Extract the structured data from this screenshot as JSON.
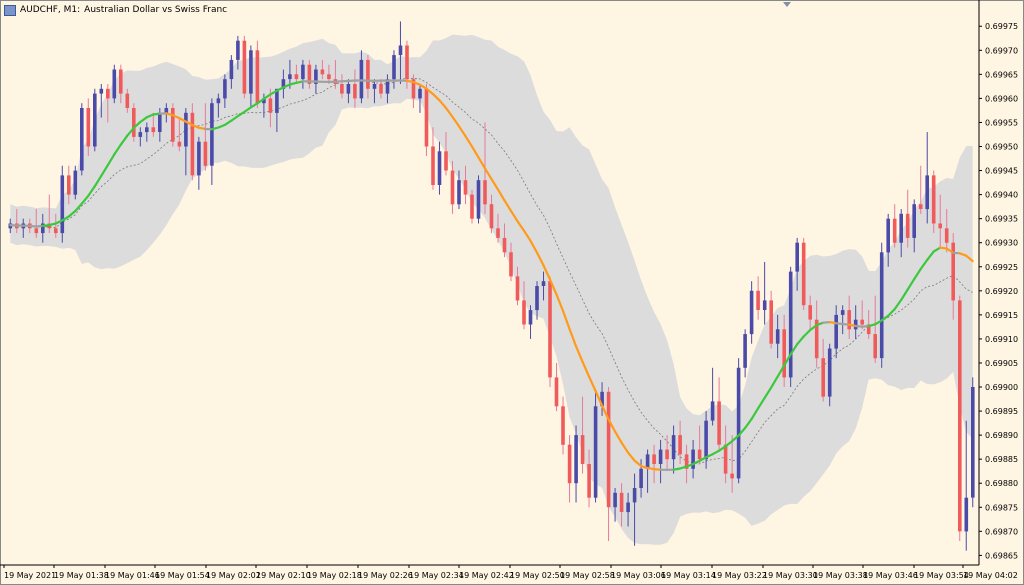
{
  "window": {
    "symbol_title": "AUDCHF, M1:",
    "description": "Australian Dollar vs Swiss Franc",
    "symbol_icon": "chart-window-icon"
  },
  "colors": {
    "background": "#fff5e3",
    "bull": "#4a4aa8",
    "bear": "#f05a5a",
    "band": "#dcdcdc",
    "ma_up": "#3cc83c",
    "ma_down": "#ff9a1a",
    "ma_flat": "#a0a0a0",
    "mid": "#7a7a7a"
  },
  "chart_data": {
    "type": "candlestick",
    "y_ticks": [
      "0.69975",
      "0.69970",
      "0.69965",
      "0.69960",
      "0.69955",
      "0.69950",
      "0.69945",
      "0.69940",
      "0.69935",
      "0.69930",
      "0.69925",
      "0.69920",
      "0.69915",
      "0.69910",
      "0.69905",
      "0.69900",
      "0.69895",
      "0.69890",
      "0.69885",
      "0.69880",
      "0.69875",
      "0.69870",
      "0.69865"
    ],
    "y_tick_values": [
      0.69975,
      0.6997,
      0.69965,
      0.6996,
      0.69955,
      0.6995,
      0.69945,
      0.6994,
      0.69935,
      0.6993,
      0.69925,
      0.6992,
      0.69915,
      0.6991,
      0.69905,
      0.699,
      0.69895,
      0.6989,
      0.69885,
      0.6988,
      0.69875,
      0.6987,
      0.69865
    ],
    "x_ticks": [
      "19 May 2021",
      "19 May 01:38",
      "19 May 01:46",
      "19 May 01:54",
      "19 May 02:02",
      "19 May 02:10",
      "19 May 02:18",
      "19 May 02:26",
      "19 May 02:34",
      "19 May 02:42",
      "19 May 02:50",
      "19 May 02:58",
      "19 May 03:06",
      "19 May 03:14",
      "19 May 03:22",
      "19 May 03:30",
      "19 May 03:38",
      "19 May 03:46",
      "19 May 03:54",
      "19 May 04:02"
    ],
    "ylim": [
      0.69863,
      0.69979
    ],
    "candles": [
      [
        0.69933,
        0.69935,
        0.69932,
        0.69934
      ],
      [
        0.69934,
        0.69937,
        0.69932,
        0.69933
      ],
      [
        0.69933,
        0.69935,
        0.69931,
        0.69934
      ],
      [
        0.69934,
        0.69935,
        0.69932,
        0.69933
      ],
      [
        0.69933,
        0.69937,
        0.69931,
        0.69932
      ],
      [
        0.69932,
        0.69936,
        0.6993,
        0.69934
      ],
      [
        0.69934,
        0.6994,
        0.69932,
        0.69933
      ],
      [
        0.69933,
        0.69936,
        0.69931,
        0.69932
      ],
      [
        0.69932,
        0.69946,
        0.6993,
        0.69944
      ],
      [
        0.69944,
        0.69946,
        0.69938,
        0.6994
      ],
      [
        0.6994,
        0.69946,
        0.69939,
        0.69945
      ],
      [
        0.69945,
        0.69959,
        0.69944,
        0.69958
      ],
      [
        0.69958,
        0.6996,
        0.69948,
        0.6995
      ],
      [
        0.6995,
        0.69962,
        0.69949,
        0.69961
      ],
      [
        0.69961,
        0.69963,
        0.69956,
        0.69962
      ],
      [
        0.69962,
        0.69963,
        0.69955,
        0.6996
      ],
      [
        0.6996,
        0.69967,
        0.69959,
        0.69966
      ],
      [
        0.69966,
        0.69967,
        0.69959,
        0.69961
      ],
      [
        0.69961,
        0.69962,
        0.69957,
        0.69958
      ],
      [
        0.69958,
        0.69959,
        0.69951,
        0.69952
      ],
      [
        0.69952,
        0.69954,
        0.6995,
        0.69953
      ],
      [
        0.69953,
        0.69955,
        0.69951,
        0.69954
      ],
      [
        0.69954,
        0.69957,
        0.69952,
        0.69953
      ],
      [
        0.69953,
        0.69958,
        0.69951,
        0.69957
      ],
      [
        0.69957,
        0.69959,
        0.69955,
        0.69958
      ],
      [
        0.69958,
        0.69959,
        0.6995,
        0.69951
      ],
      [
        0.69951,
        0.69956,
        0.69949,
        0.6995
      ],
      [
        0.6995,
        0.69958,
        0.69944,
        0.69957
      ],
      [
        0.69957,
        0.69959,
        0.69943,
        0.69944
      ],
      [
        0.69944,
        0.69952,
        0.69941,
        0.69951
      ],
      [
        0.69951,
        0.69959,
        0.69945,
        0.69946
      ],
      [
        0.69946,
        0.6996,
        0.69942,
        0.69959
      ],
      [
        0.69959,
        0.69961,
        0.69956,
        0.6996
      ],
      [
        0.6996,
        0.69965,
        0.69958,
        0.69964
      ],
      [
        0.69964,
        0.69969,
        0.69962,
        0.69968
      ],
      [
        0.69968,
        0.69973,
        0.69966,
        0.69972
      ],
      [
        0.69972,
        0.69973,
        0.6996,
        0.69961
      ],
      [
        0.69961,
        0.69971,
        0.69958,
        0.6997
      ],
      [
        0.6997,
        0.69972,
        0.69958,
        0.69959
      ],
      [
        0.69959,
        0.69961,
        0.69956,
        0.6996
      ],
      [
        0.6996,
        0.69962,
        0.69954,
        0.69957
      ],
      [
        0.69957,
        0.69961,
        0.69953,
        0.69962
      ],
      [
        0.69962,
        0.69966,
        0.6996,
        0.69964
      ],
      [
        0.69964,
        0.69968,
        0.69962,
        0.69965
      ],
      [
        0.69965,
        0.69967,
        0.69963,
        0.69964
      ],
      [
        0.69964,
        0.69968,
        0.69962,
        0.69967
      ],
      [
        0.69967,
        0.69968,
        0.69962,
        0.69963
      ],
      [
        0.69963,
        0.69967,
        0.69961,
        0.69966
      ],
      [
        0.69966,
        0.69968,
        0.69964,
        0.69965
      ],
      [
        0.69965,
        0.69967,
        0.69963,
        0.69964
      ],
      [
        0.69964,
        0.69968,
        0.69962,
        0.69963
      ],
      [
        0.69963,
        0.69965,
        0.6996,
        0.69961
      ],
      [
        0.69961,
        0.69964,
        0.69959,
        0.69963
      ],
      [
        0.69963,
        0.69966,
        0.69958,
        0.6996
      ],
      [
        0.6996,
        0.6997,
        0.69959,
        0.69968
      ],
      [
        0.69968,
        0.69969,
        0.6996,
        0.69962
      ],
      [
        0.69962,
        0.69964,
        0.69959,
        0.69963
      ],
      [
        0.69963,
        0.69964,
        0.6996,
        0.69961
      ],
      [
        0.69961,
        0.69965,
        0.69959,
        0.69964
      ],
      [
        0.69964,
        0.6997,
        0.69962,
        0.69969
      ],
      [
        0.69969,
        0.69976,
        0.69963,
        0.69971
      ],
      [
        0.69971,
        0.69972,
        0.69962,
        0.69964
      ],
      [
        0.69964,
        0.69965,
        0.69958,
        0.6996
      ],
      [
        0.6996,
        0.69963,
        0.69957,
        0.69962
      ],
      [
        0.69962,
        0.69963,
        0.69948,
        0.6995
      ],
      [
        0.6995,
        0.69954,
        0.69941,
        0.69942
      ],
      [
        0.69942,
        0.69951,
        0.6994,
        0.69949
      ],
      [
        0.69949,
        0.69953,
        0.69944,
        0.69945
      ],
      [
        0.69945,
        0.69947,
        0.69936,
        0.69938
      ],
      [
        0.69938,
        0.69945,
        0.69937,
        0.69943
      ],
      [
        0.69943,
        0.69946,
        0.69938,
        0.6994
      ],
      [
        0.6994,
        0.69941,
        0.69934,
        0.69935
      ],
      [
        0.69935,
        0.69944,
        0.69934,
        0.69943
      ],
      [
        0.69943,
        0.69955,
        0.69936,
        0.69938
      ],
      [
        0.69938,
        0.6994,
        0.69932,
        0.69933
      ],
      [
        0.69933,
        0.69936,
        0.6993,
        0.69931
      ],
      [
        0.69931,
        0.69934,
        0.69927,
        0.69928
      ],
      [
        0.69928,
        0.6993,
        0.69922,
        0.69923
      ],
      [
        0.69923,
        0.69925,
        0.69917,
        0.69918
      ],
      [
        0.69918,
        0.69922,
        0.69912,
        0.69913
      ],
      [
        0.69913,
        0.69917,
        0.6991,
        0.69916
      ],
      [
        0.69916,
        0.69922,
        0.69914,
        0.69921
      ],
      [
        0.69921,
        0.69924,
        0.69918,
        0.69922
      ],
      [
        0.69922,
        0.69923,
        0.699,
        0.69902
      ],
      [
        0.69902,
        0.69905,
        0.69895,
        0.69896
      ],
      [
        0.69896,
        0.69898,
        0.69886,
        0.69888
      ],
      [
        0.69888,
        0.6989,
        0.69876,
        0.6988
      ],
      [
        0.6988,
        0.69892,
        0.69876,
        0.6989
      ],
      [
        0.6989,
        0.69898,
        0.69882,
        0.69884
      ],
      [
        0.69884,
        0.69887,
        0.69875,
        0.69877
      ],
      [
        0.69877,
        0.69899,
        0.69876,
        0.69896
      ],
      [
        0.69896,
        0.69901,
        0.69894,
        0.69899
      ],
      [
        0.69899,
        0.699,
        0.69868,
        0.69875
      ],
      [
        0.69875,
        0.69879,
        0.69872,
        0.69878
      ],
      [
        0.69878,
        0.6988,
        0.69871,
        0.69874
      ],
      [
        0.69874,
        0.69878,
        0.69871,
        0.69876
      ],
      [
        0.69876,
        0.69882,
        0.69867,
        0.69879
      ],
      [
        0.69879,
        0.69885,
        0.69877,
        0.69883
      ],
      [
        0.69883,
        0.69887,
        0.69878,
        0.69886
      ],
      [
        0.69886,
        0.69888,
        0.6988,
        0.69884
      ],
      [
        0.69884,
        0.69889,
        0.6988,
        0.69887
      ],
      [
        0.69887,
        0.6989,
        0.69883,
        0.69885
      ],
      [
        0.69885,
        0.69892,
        0.69882,
        0.6989
      ],
      [
        0.6989,
        0.69893,
        0.69884,
        0.69886
      ],
      [
        0.69886,
        0.69888,
        0.6988,
        0.69883
      ],
      [
        0.69883,
        0.69889,
        0.69881,
        0.69887
      ],
      [
        0.69887,
        0.69892,
        0.69884,
        0.69885
      ],
      [
        0.69885,
        0.69895,
        0.69883,
        0.69893
      ],
      [
        0.69893,
        0.69904,
        0.69892,
        0.69897
      ],
      [
        0.69897,
        0.69902,
        0.69887,
        0.69888
      ],
      [
        0.69888,
        0.69892,
        0.6988,
        0.69882
      ],
      [
        0.69882,
        0.6989,
        0.69878,
        0.69881
      ],
      [
        0.69881,
        0.69906,
        0.6988,
        0.69904
      ],
      [
        0.69904,
        0.69912,
        0.69902,
        0.69911
      ],
      [
        0.69911,
        0.69922,
        0.69909,
        0.6992
      ],
      [
        0.6992,
        0.69923,
        0.69914,
        0.69916
      ],
      [
        0.69916,
        0.69926,
        0.69913,
        0.69918
      ],
      [
        0.69918,
        0.6992,
        0.69908,
        0.69909
      ],
      [
        0.69909,
        0.69915,
        0.69906,
        0.69912
      ],
      [
        0.69912,
        0.69915,
        0.699,
        0.69902
      ],
      [
        0.69902,
        0.69925,
        0.699,
        0.69924
      ],
      [
        0.69924,
        0.69931,
        0.6992,
        0.6993
      ],
      [
        0.6993,
        0.69931,
        0.69916,
        0.69917
      ],
      [
        0.69917,
        0.69919,
        0.69912,
        0.69914
      ],
      [
        0.69914,
        0.69918,
        0.69904,
        0.69906
      ],
      [
        0.69906,
        0.6991,
        0.69897,
        0.69898
      ],
      [
        0.69898,
        0.69909,
        0.69896,
        0.69908
      ],
      [
        0.69908,
        0.69917,
        0.69906,
        0.69915
      ],
      [
        0.69915,
        0.69917,
        0.69911,
        0.69916
      ],
      [
        0.69916,
        0.69919,
        0.6991,
        0.69912
      ],
      [
        0.69912,
        0.69917,
        0.6991,
        0.69914
      ],
      [
        0.69914,
        0.69918,
        0.69912,
        0.69913
      ],
      [
        0.69913,
        0.69916,
        0.6991,
        0.69911
      ],
      [
        0.69911,
        0.69919,
        0.69905,
        0.69906
      ],
      [
        0.69906,
        0.6993,
        0.69904,
        0.69928
      ],
      [
        0.69928,
        0.69936,
        0.69925,
        0.69935
      ],
      [
        0.69935,
        0.69938,
        0.69929,
        0.6993
      ],
      [
        0.6993,
        0.69937,
        0.69927,
        0.69936
      ],
      [
        0.69936,
        0.69941,
        0.69929,
        0.69931
      ],
      [
        0.69931,
        0.69939,
        0.69928,
        0.69938
      ],
      [
        0.69938,
        0.69946,
        0.69936,
        0.69937
      ],
      [
        0.69937,
        0.69953,
        0.69934,
        0.69944
      ],
      [
        0.69944,
        0.69945,
        0.69932,
        0.69934
      ],
      [
        0.69934,
        0.6994,
        0.69929,
        0.69933
      ],
      [
        0.69933,
        0.69937,
        0.69928,
        0.6993
      ],
      [
        0.6993,
        0.69932,
        0.69914,
        0.69918
      ],
      [
        0.69918,
        0.69919,
        0.69868,
        0.6987
      ],
      [
        0.6987,
        0.69893,
        0.69866,
        0.69877
      ],
      [
        0.69877,
        0.69902,
        0.69875,
        0.699
      ]
    ]
  }
}
